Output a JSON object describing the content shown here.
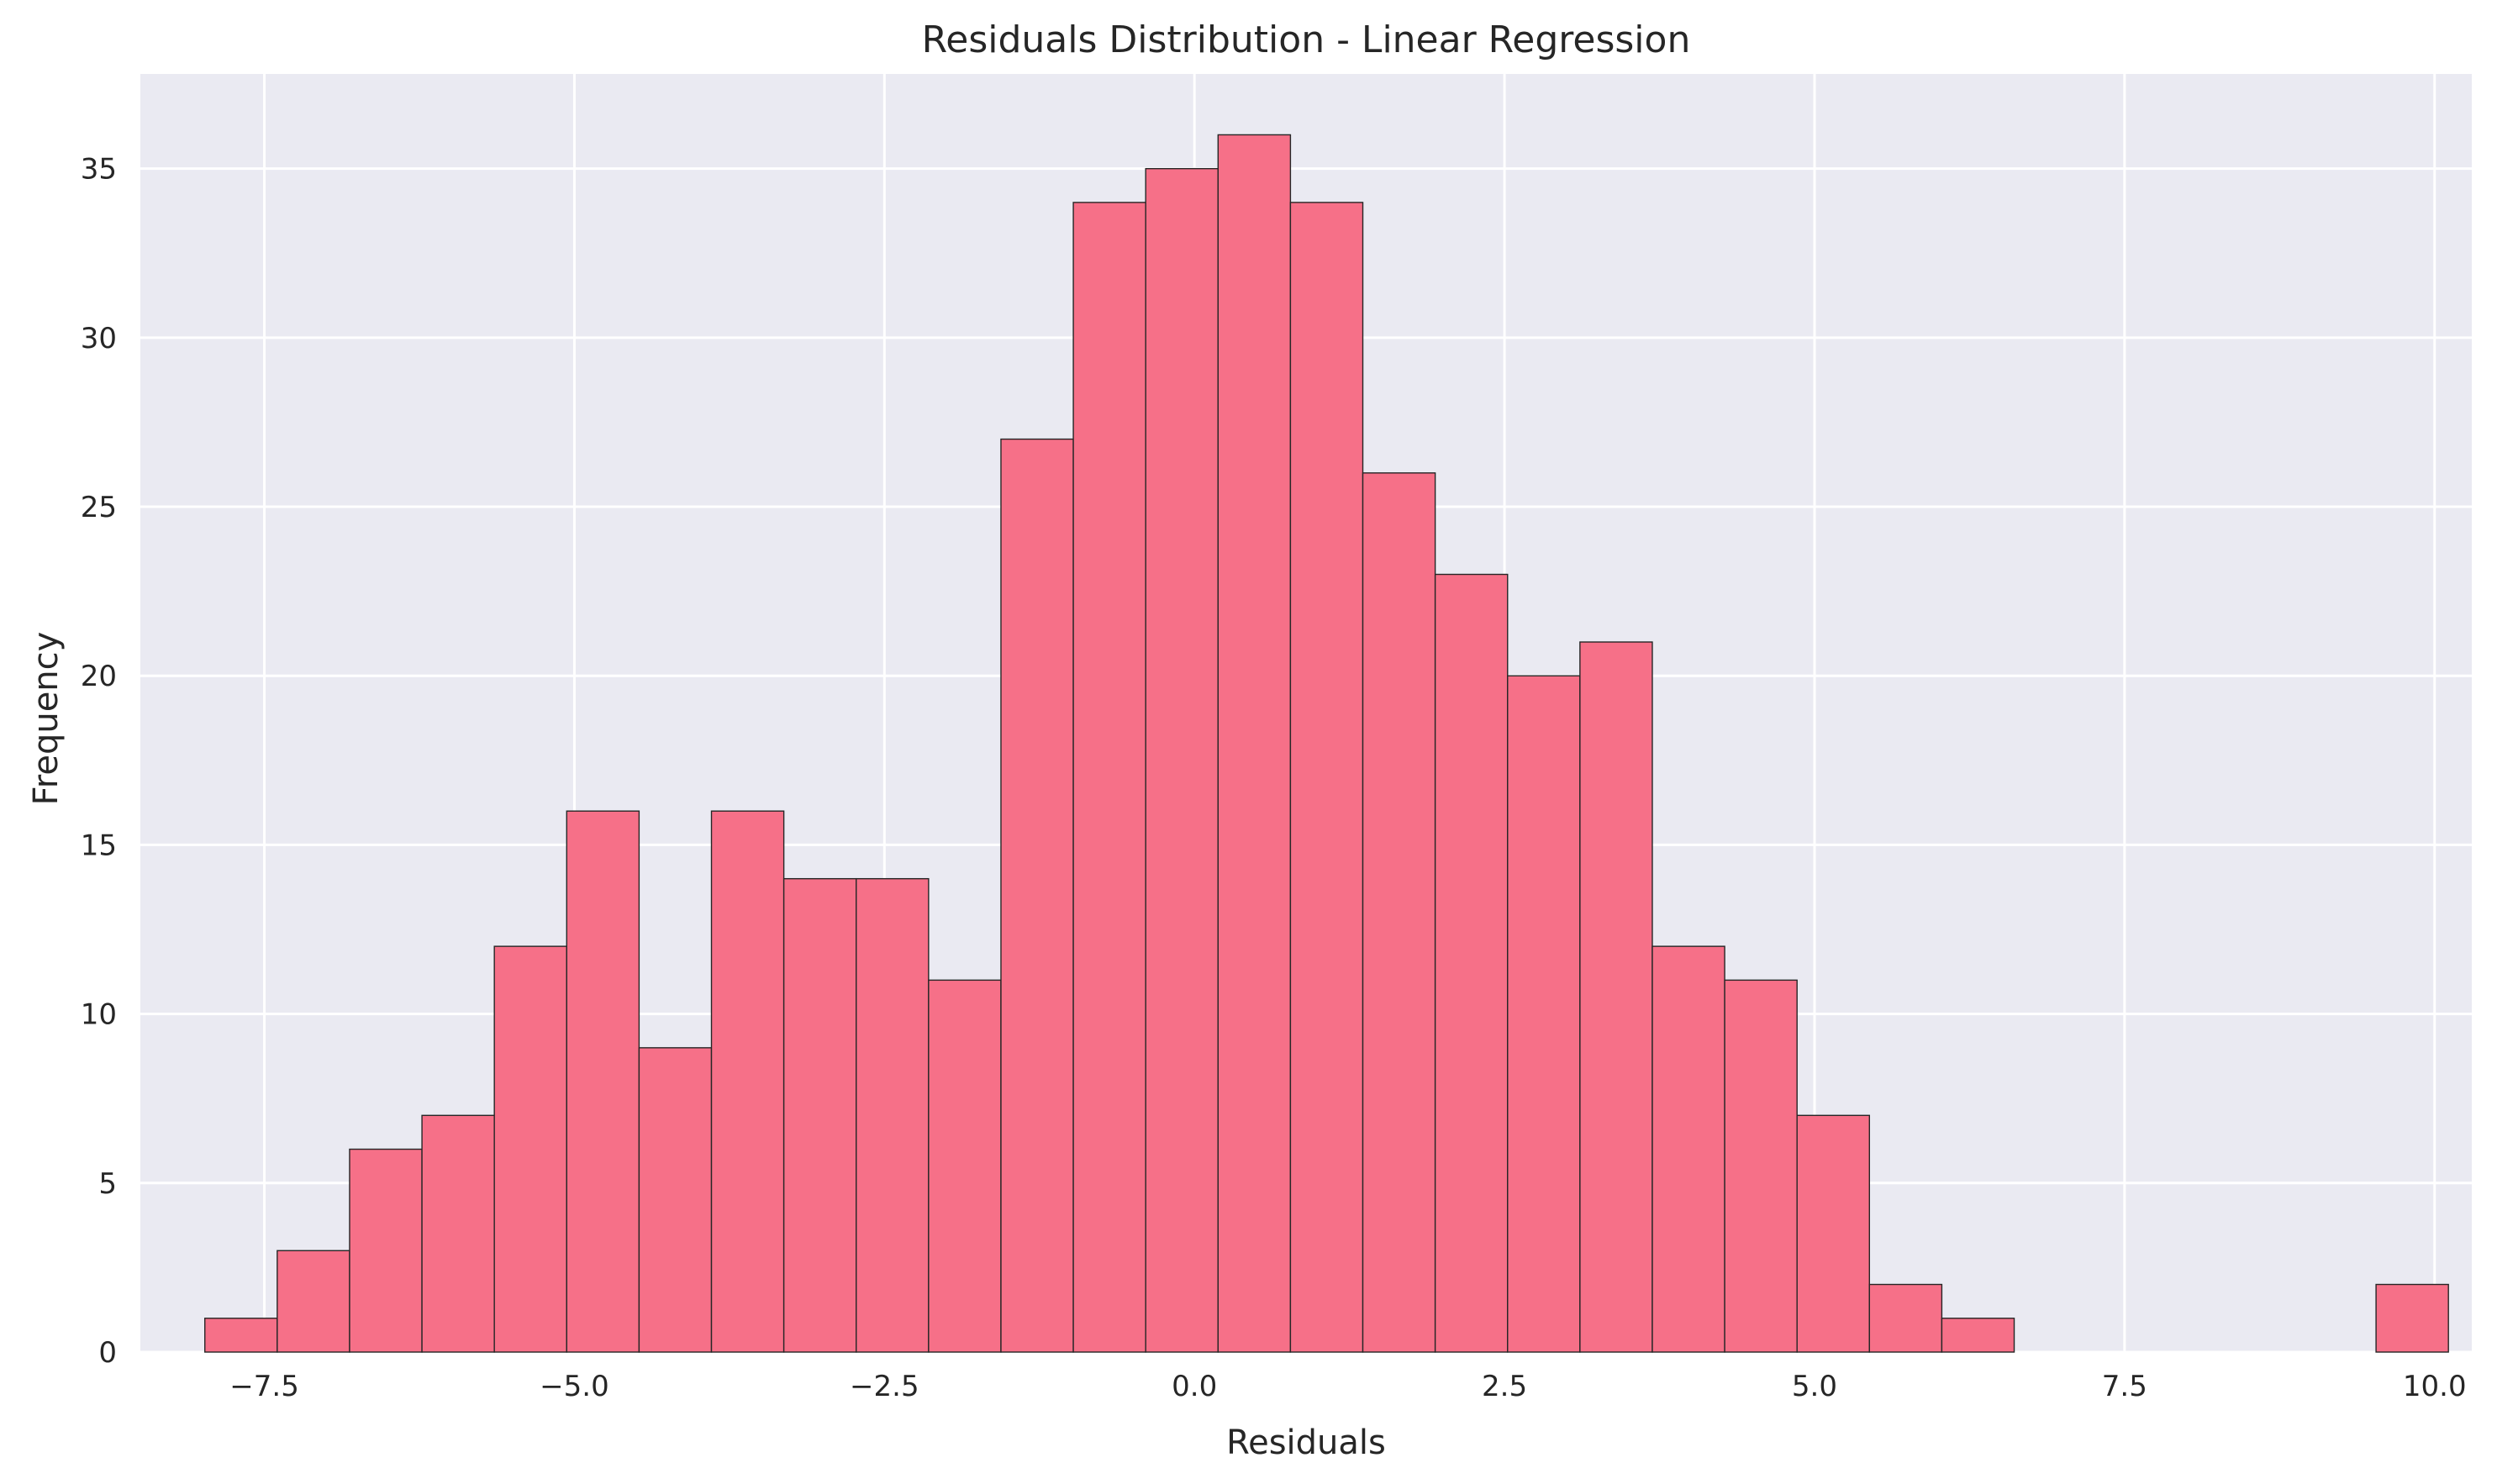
{
  "chart_data": {
    "type": "bar",
    "title": "Residuals Distribution - Linear Regression",
    "xlabel": "Residuals",
    "ylabel": "Frequency",
    "xlim": [
      -8.5,
      10.3
    ],
    "ylim": [
      0,
      37.8
    ],
    "xticks": [
      -7.5,
      -5.0,
      -2.5,
      0.0,
      2.5,
      5.0,
      7.5,
      10.0
    ],
    "xtick_labels": [
      "−7.5",
      "−5.0",
      "−2.5",
      "0.0",
      "2.5",
      "5.0",
      "7.5",
      "10.0"
    ],
    "yticks": [
      0,
      5,
      10,
      15,
      20,
      25,
      30,
      35
    ],
    "ytick_labels": [
      "0",
      "5",
      "10",
      "15",
      "20",
      "25",
      "30",
      "35"
    ],
    "bin_start": -7.98,
    "bin_width": 0.5836,
    "values": [
      1,
      3,
      6,
      7,
      12,
      16,
      9,
      16,
      14,
      14,
      11,
      27,
      34,
      35,
      36,
      34,
      26,
      23,
      20,
      21,
      12,
      11,
      7,
      2,
      1,
      0,
      0,
      0,
      0,
      0,
      2
    ],
    "grid": true,
    "legend": "none",
    "colors": {
      "bar_fill": "#f67088",
      "bar_edge": "#262626",
      "plot_background": "#eaeaf2",
      "grid": "#ffffff",
      "text": "#262626"
    }
  }
}
